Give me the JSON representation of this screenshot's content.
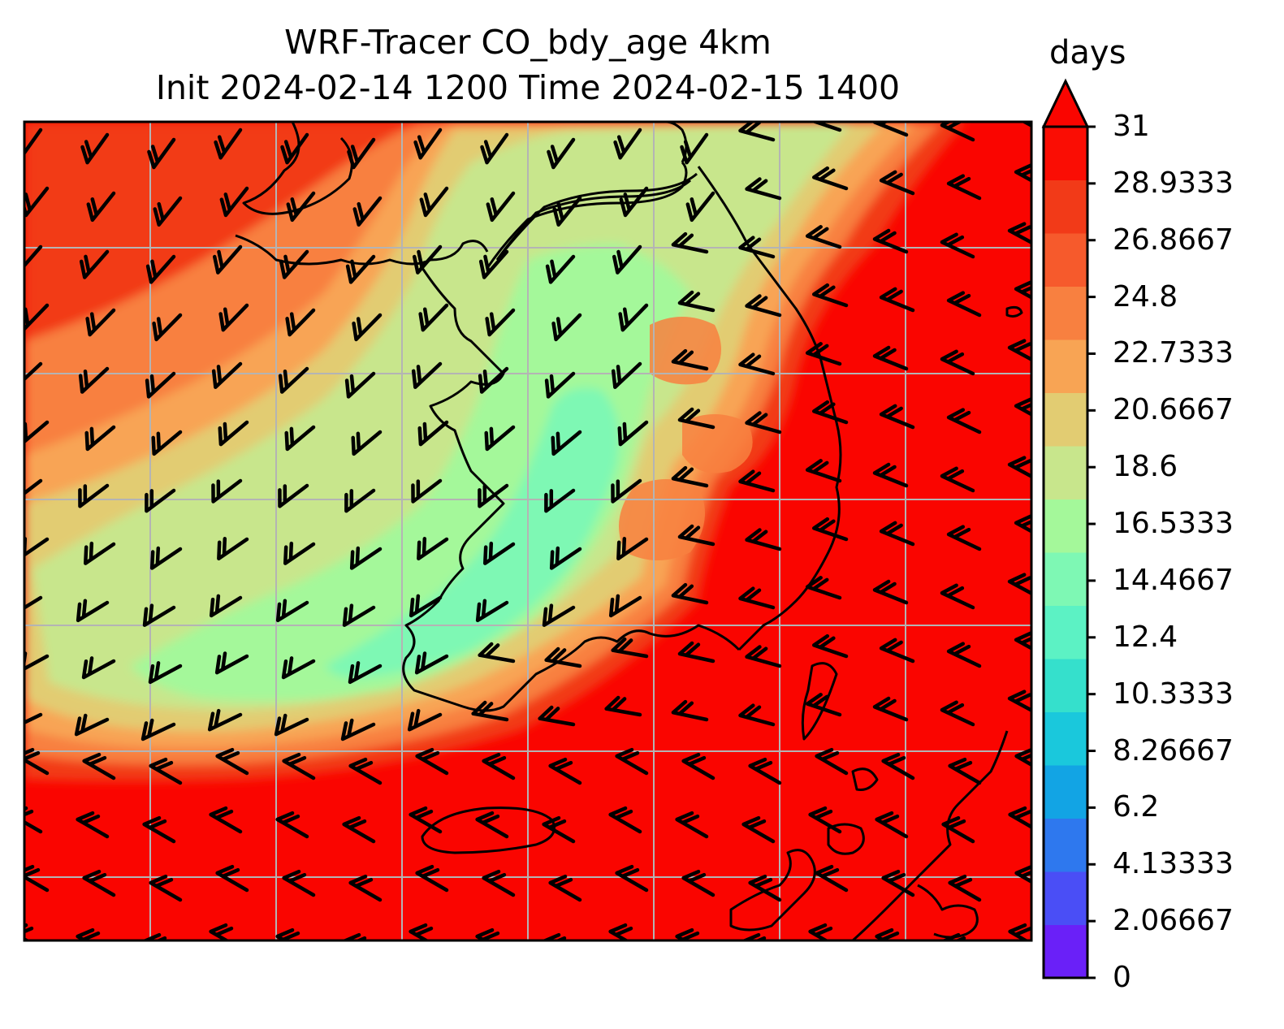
{
  "title": {
    "line1": "WRF-Tracer CO_bdy_age 4km",
    "line2": "Init 2024-02-14 1200 Time 2024-02-15 1400"
  },
  "colorbar": {
    "units": "days",
    "min": 0,
    "max": 31,
    "extend": "max",
    "tick_labels": [
      "0",
      "2.06667",
      "4.13333",
      "6.2",
      "8.26667",
      "10.3333",
      "12.4",
      "14.4667",
      "16.5333",
      "18.6",
      "20.6667",
      "22.7333",
      "24.8",
      "26.8667",
      "28.9333",
      "31"
    ],
    "level_colors": [
      "#6a20f8",
      "#4a4ef6",
      "#2e78ee",
      "#12a4e4",
      "#1ac8dc",
      "#35e0cc",
      "#5cf2c4",
      "#7ef8b4",
      "#a4f89a",
      "#c8e68c",
      "#e2cc72",
      "#f8a454",
      "#f88040",
      "#f65a2c",
      "#f23a18",
      "#fa0d04"
    ],
    "extend_color": "#fa0500"
  },
  "map": {
    "gridlines": "on",
    "grid_color": "#b4b4b4",
    "coastline_color": "#000000",
    "wind_barb_color": "#000000",
    "field_colors": {
      "background": "#fa0500",
      "ring_outer": "#f23a18",
      "ring_mid": "#f88040",
      "ring_inner": "#f8a454",
      "light": "#e2cc72",
      "core": "#c8e68c",
      "core_green": "#a4f89a",
      "core_cyan": "#7ef8b4",
      "patch_orange": "#f88040"
    }
  }
}
